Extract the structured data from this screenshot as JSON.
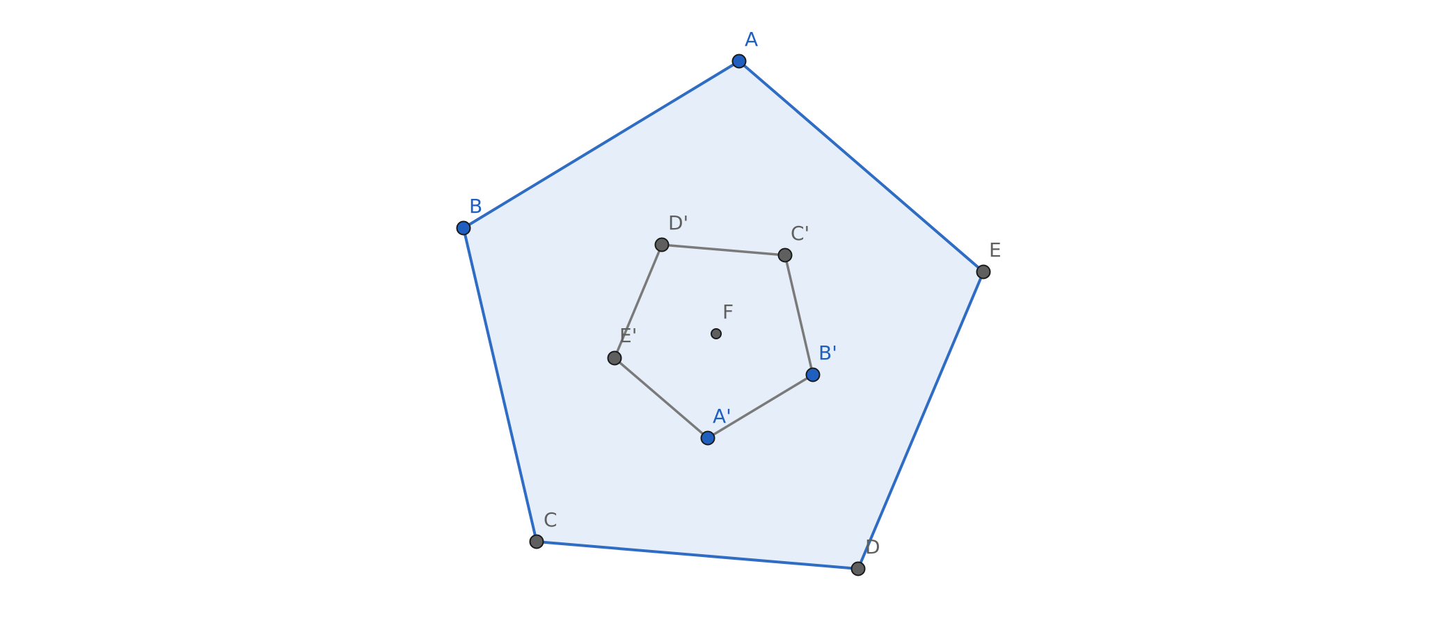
{
  "colors": {
    "outer_stroke": "#2f6cc4",
    "outer_fill": "#e6eff9",
    "inner_stroke": "#7a7a7a",
    "free_point": "#1f5fbf",
    "dependent_point": "#5f5f5f",
    "free_label": "#1f5fbf",
    "dependent_label": "#5f5f5f"
  },
  "outer_polygon": {
    "name": "ABCDE",
    "vertices": [
      "A",
      "B",
      "C",
      "D",
      "E"
    ]
  },
  "inner_polygon": {
    "name": "A'B'C'D'E'",
    "vertices": [
      "A'",
      "B'",
      "C'",
      "D'",
      "E'"
    ]
  },
  "points": [
    {
      "id": "A",
      "label": "A",
      "kind": "free"
    },
    {
      "id": "B",
      "label": "B",
      "kind": "free"
    },
    {
      "id": "C",
      "label": "C",
      "kind": "dependent"
    },
    {
      "id": "D",
      "label": "D",
      "kind": "dependent"
    },
    {
      "id": "E",
      "label": "E",
      "kind": "dependent"
    },
    {
      "id": "A'",
      "label": "A'",
      "kind": "free"
    },
    {
      "id": "B'",
      "label": "B'",
      "kind": "free"
    },
    {
      "id": "C'",
      "label": "C'",
      "kind": "dependent"
    },
    {
      "id": "D'",
      "label": "D'",
      "kind": "dependent"
    },
    {
      "id": "E'",
      "label": "E'",
      "kind": "dependent"
    },
    {
      "id": "F",
      "label": "F",
      "kind": "center"
    }
  ]
}
